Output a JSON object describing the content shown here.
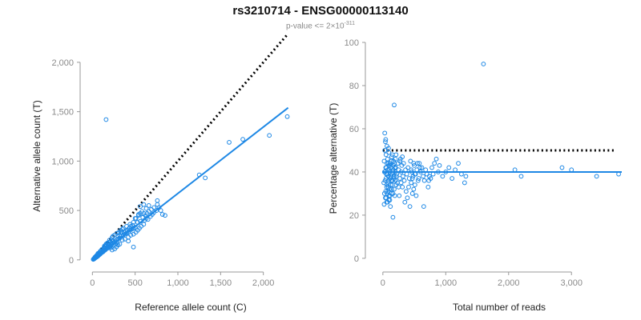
{
  "header": {
    "title": "rs3210714 - ENSG00000113140",
    "subtitle_prefix": "p-value <= 2×10",
    "subtitle_exponent": "-311"
  },
  "colors": {
    "points": "#1e88e5",
    "fit_line": "#1e88e5",
    "reference_line": "#000000"
  },
  "chart_data": [
    {
      "type": "scatter",
      "xlabel": "Reference allele count (C)",
      "ylabel": "Alternative allele count (T)",
      "xlim": [
        -50,
        2350
      ],
      "ylim": [
        -50,
        2250
      ],
      "x_ticks": [
        0,
        500,
        1000,
        1500,
        2000
      ],
      "x_tick_labels": [
        "0",
        "500",
        "1,000",
        "1,500",
        "2,000"
      ],
      "y_ticks": [
        0,
        500,
        1000,
        1500,
        2000
      ],
      "y_tick_labels": [
        "0",
        "500",
        "1,000",
        "1,500",
        "2,000"
      ],
      "reference_line": {
        "label": "y = x (dotted)",
        "from": [
          0,
          0
        ],
        "to": [
          2280,
          2280
        ]
      },
      "fit_line": {
        "from": [
          0,
          0
        ],
        "to": [
          2290,
          1540
        ]
      },
      "points": [
        [
          10,
          5
        ],
        [
          15,
          8
        ],
        [
          20,
          10
        ],
        [
          25,
          14
        ],
        [
          30,
          18
        ],
        [
          35,
          20
        ],
        [
          40,
          25
        ],
        [
          45,
          30
        ],
        [
          50,
          28
        ],
        [
          55,
          35
        ],
        [
          60,
          40
        ],
        [
          65,
          38
        ],
        [
          70,
          45
        ],
        [
          75,
          50
        ],
        [
          80,
          52
        ],
        [
          85,
          55
        ],
        [
          90,
          60
        ],
        [
          95,
          62
        ],
        [
          100,
          70
        ],
        [
          105,
          72
        ],
        [
          110,
          75
        ],
        [
          115,
          78
        ],
        [
          120,
          80
        ],
        [
          125,
          82
        ],
        [
          130,
          90
        ],
        [
          140,
          95
        ],
        [
          150,
          100
        ],
        [
          160,
          110
        ],
        [
          170,
          115
        ],
        [
          180,
          120
        ],
        [
          190,
          130
        ],
        [
          200,
          135
        ],
        [
          210,
          140
        ],
        [
          220,
          150
        ],
        [
          230,
          160
        ],
        [
          240,
          170
        ],
        [
          250,
          175
        ],
        [
          260,
          180
        ],
        [
          270,
          190
        ],
        [
          280,
          200
        ],
        [
          120,
          95
        ],
        [
          140,
          115
        ],
        [
          165,
          140
        ],
        [
          190,
          160
        ],
        [
          210,
          185
        ],
        [
          110,
          105
        ],
        [
          135,
          125
        ],
        [
          160,
          150
        ],
        [
          60,
          55
        ],
        [
          80,
          70
        ],
        [
          30,
          28
        ],
        [
          40,
          35
        ],
        [
          50,
          45
        ],
        [
          70,
          60
        ],
        [
          90,
          85
        ],
        [
          100,
          90
        ],
        [
          150,
          140
        ],
        [
          175,
          170
        ],
        [
          200,
          180
        ],
        [
          225,
          200
        ],
        [
          300,
          210
        ],
        [
          320,
          220
        ],
        [
          340,
          240
        ],
        [
          360,
          250
        ],
        [
          380,
          260
        ],
        [
          400,
          270
        ],
        [
          420,
          280
        ],
        [
          440,
          300
        ],
        [
          460,
          310
        ],
        [
          480,
          320
        ],
        [
          500,
          330
        ],
        [
          310,
          280
        ],
        [
          330,
          300
        ],
        [
          350,
          310
        ],
        [
          370,
          280
        ],
        [
          390,
          290
        ],
        [
          410,
          300
        ],
        [
          430,
          320
        ],
        [
          450,
          340
        ],
        [
          470,
          350
        ],
        [
          250,
          150
        ],
        [
          270,
          160
        ],
        [
          290,
          170
        ],
        [
          210,
          120
        ],
        [
          230,
          100
        ],
        [
          260,
          110
        ],
        [
          280,
          130
        ],
        [
          300,
          150
        ],
        [
          320,
          160
        ],
        [
          240,
          190
        ],
        [
          350,
          200
        ],
        [
          380,
          210
        ],
        [
          420,
          230
        ],
        [
          450,
          250
        ],
        [
          480,
          260
        ],
        [
          510,
          280
        ],
        [
          530,
          300
        ],
        [
          550,
          320
        ],
        [
          570,
          340
        ],
        [
          600,
          360
        ],
        [
          610,
          400
        ],
        [
          630,
          420
        ],
        [
          650,
          410
        ],
        [
          680,
          440
        ],
        [
          700,
          460
        ],
        [
          720,
          480
        ],
        [
          750,
          500
        ],
        [
          780,
          530
        ],
        [
          800,
          500
        ],
        [
          820,
          460
        ],
        [
          510,
          420
        ],
        [
          530,
          380
        ],
        [
          560,
          390
        ],
        [
          590,
          430
        ],
        [
          620,
          450
        ],
        [
          640,
          470
        ],
        [
          660,
          490
        ],
        [
          690,
          510
        ],
        [
          720,
          530
        ],
        [
          760,
          560
        ],
        [
          480,
          130
        ],
        [
          420,
          190
        ],
        [
          500,
          420
        ],
        [
          540,
          450
        ],
        [
          560,
          470
        ],
        [
          580,
          490
        ],
        [
          600,
          470
        ],
        [
          630,
          520
        ],
        [
          660,
          550
        ],
        [
          760,
          600
        ],
        [
          600,
          560
        ],
        [
          560,
          540
        ],
        [
          540,
          460
        ],
        [
          480,
          380
        ],
        [
          440,
          360
        ],
        [
          400,
          340
        ],
        [
          360,
          320
        ],
        [
          340,
          280
        ],
        [
          320,
          250
        ],
        [
          300,
          240
        ],
        [
          850,
          450
        ],
        [
          1250,
          860
        ],
        [
          1320,
          830
        ],
        [
          1600,
          1190
        ],
        [
          1760,
          1220
        ],
        [
          2070,
          1260
        ],
        [
          2280,
          1450
        ],
        [
          160,
          1420
        ],
        [
          200,
          200
        ],
        [
          240,
          240
        ],
        [
          180,
          170
        ],
        [
          160,
          160
        ],
        [
          140,
          140
        ],
        [
          230,
          225
        ],
        [
          260,
          250
        ],
        [
          290,
          270
        ],
        [
          20,
          15
        ],
        [
          35,
          30
        ],
        [
          45,
          40
        ],
        [
          65,
          65
        ]
      ]
    },
    {
      "type": "scatter",
      "xlabel": "Total number of reads",
      "ylabel": "Percentage alternative (T)",
      "xlim": [
        -100,
        3800
      ],
      "ylim": [
        -3,
        100
      ],
      "x_ticks": [
        0,
        1000,
        2000,
        3000
      ],
      "x_tick_labels": [
        "0",
        "1,000",
        "2,000",
        "3,000"
      ],
      "y_ticks": [
        0,
        20,
        40,
        60,
        80,
        100
      ],
      "y_tick_labels": [
        "0",
        "20",
        "40",
        "60",
        "80",
        "100"
      ],
      "reference_line": {
        "label": "50% (dotted)",
        "from": [
          0,
          50
        ],
        "to": [
          3700,
          50
        ]
      },
      "fit_line": {
        "from": [
          0,
          40
        ],
        "to": [
          3800,
          40
        ]
      },
      "points": [
        [
          15,
          35
        ],
        [
          20,
          45
        ],
        [
          25,
          30
        ],
        [
          30,
          50
        ],
        [
          35,
          40
        ],
        [
          40,
          28
        ],
        [
          45,
          55
        ],
        [
          50,
          37
        ],
        [
          55,
          42
        ],
        [
          60,
          33
        ],
        [
          65,
          52
        ],
        [
          70,
          39
        ],
        [
          75,
          46
        ],
        [
          80,
          31
        ],
        [
          85,
          44
        ],
        [
          90,
          36
        ],
        [
          95,
          49
        ],
        [
          100,
          41
        ],
        [
          110,
          27
        ],
        [
          120,
          43
        ],
        [
          130,
          38
        ],
        [
          140,
          47
        ],
        [
          150,
          34
        ],
        [
          160,
          40
        ],
        [
          170,
          45
        ],
        [
          180,
          32
        ],
        [
          190,
          42
        ],
        [
          200,
          36
        ],
        [
          210,
          48
        ],
        [
          220,
          39
        ],
        [
          230,
          35
        ],
        [
          240,
          44
        ],
        [
          250,
          41
        ],
        [
          260,
          29
        ],
        [
          270,
          37
        ],
        [
          280,
          46
        ],
        [
          290,
          40
        ],
        [
          300,
          43
        ],
        [
          310,
          33
        ],
        [
          320,
          38
        ],
        [
          20,
          25
        ],
        [
          30,
          58
        ],
        [
          40,
          54
        ],
        [
          50,
          48
        ],
        [
          60,
          26
        ],
        [
          70,
          30
        ],
        [
          80,
          35
        ],
        [
          90,
          51
        ],
        [
          100,
          29
        ],
        [
          110,
          44
        ],
        [
          120,
          24
        ],
        [
          130,
          36
        ],
        [
          140,
          32
        ],
        [
          150,
          48
        ],
        [
          160,
          30
        ],
        [
          170,
          43
        ],
        [
          180,
          37
        ],
        [
          190,
          29
        ],
        [
          200,
          46
        ],
        [
          210,
          34
        ],
        [
          25,
          40
        ],
        [
          35,
          36
        ],
        [
          45,
          42
        ],
        [
          55,
          39
        ],
        [
          65,
          44
        ],
        [
          75,
          41
        ],
        [
          85,
          38
        ],
        [
          95,
          43
        ],
        [
          105,
          40
        ],
        [
          115,
          37
        ],
        [
          125,
          42
        ],
        [
          135,
          45
        ],
        [
          145,
          39
        ],
        [
          155,
          36
        ],
        [
          165,
          41
        ],
        [
          175,
          38
        ],
        [
          185,
          44
        ],
        [
          195,
          40
        ],
        [
          205,
          42
        ],
        [
          215,
          38
        ],
        [
          330,
          44
        ],
        [
          340,
          36
        ],
        [
          360,
          41
        ],
        [
          380,
          39
        ],
        [
          400,
          42
        ],
        [
          420,
          37
        ],
        [
          440,
          45
        ],
        [
          460,
          40
        ],
        [
          480,
          38
        ],
        [
          500,
          43
        ],
        [
          520,
          39
        ],
        [
          540,
          41
        ],
        [
          560,
          36
        ],
        [
          580,
          44
        ],
        [
          600,
          40
        ],
        [
          620,
          42
        ],
        [
          640,
          38
        ],
        [
          660,
          36
        ],
        [
          680,
          41
        ],
        [
          700,
          39
        ],
        [
          350,
          26
        ],
        [
          370,
          31
        ],
        [
          390,
          28
        ],
        [
          410,
          33
        ],
        [
          430,
          24
        ],
        [
          450,
          35
        ],
        [
          470,
          30
        ],
        [
          490,
          32
        ],
        [
          510,
          34
        ],
        [
          530,
          29
        ],
        [
          720,
          33
        ],
        [
          740,
          38
        ],
        [
          760,
          37
        ],
        [
          780,
          42
        ],
        [
          800,
          39
        ],
        [
          820,
          44
        ],
        [
          850,
          46
        ],
        [
          880,
          40
        ],
        [
          900,
          43
        ],
        [
          950,
          38
        ],
        [
          1000,
          40
        ],
        [
          1050,
          42
        ],
        [
          1100,
          37
        ],
        [
          1150,
          41
        ],
        [
          1200,
          44
        ],
        [
          1250,
          39
        ],
        [
          1300,
          35
        ],
        [
          1320,
          38
        ],
        [
          650,
          24
        ],
        [
          730,
          36
        ],
        [
          180,
          71
        ],
        [
          160,
          19
        ],
        [
          1600,
          90
        ],
        [
          2100,
          41
        ],
        [
          2200,
          38
        ],
        [
          2850,
          42
        ],
        [
          3000,
          41
        ],
        [
          3400,
          38
        ],
        [
          3750,
          39
        ],
        [
          250,
          33
        ],
        [
          270,
          45
        ],
        [
          290,
          35
        ],
        [
          310,
          47
        ],
        [
          450,
          41
        ],
        [
          470,
          37
        ],
        [
          490,
          44
        ],
        [
          510,
          39
        ],
        [
          550,
          44
        ],
        [
          570,
          37
        ],
        [
          590,
          42
        ],
        [
          45,
          31
        ],
        [
          55,
          28
        ],
        [
          65,
          34
        ],
        [
          75,
          26
        ],
        [
          85,
          33
        ],
        [
          95,
          27
        ],
        [
          105,
          32
        ],
        [
          115,
          29
        ],
        [
          125,
          34
        ],
        [
          135,
          30
        ]
      ]
    }
  ]
}
